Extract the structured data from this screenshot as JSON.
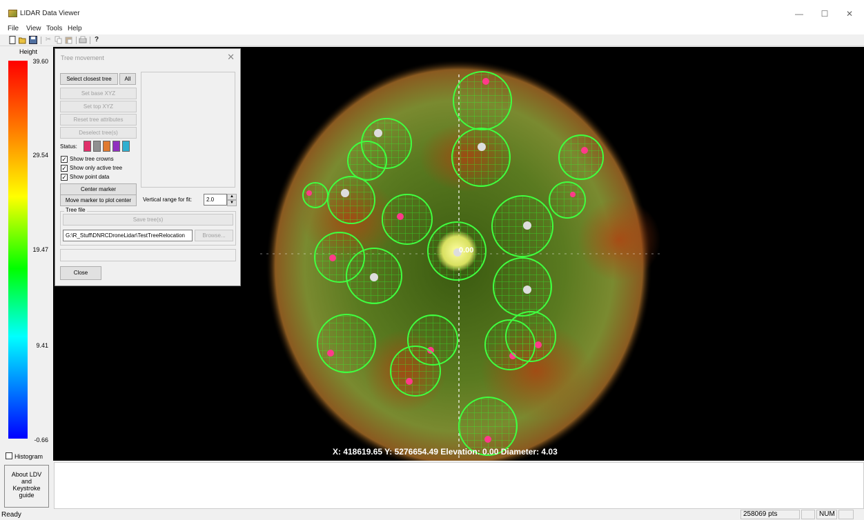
{
  "window": {
    "title": "LIDAR Data Viewer",
    "minimize": "—",
    "maximize": "☐",
    "close": "✕"
  },
  "menu": [
    "File",
    "View",
    "Tools",
    "Help"
  ],
  "toolbar": {
    "icons": [
      "new-icon",
      "open-icon",
      "save-icon",
      "cut-icon",
      "copy-icon",
      "paste-icon",
      "print-icon",
      "help-icon"
    ]
  },
  "legend": {
    "title": "Height",
    "ticks": [
      "39.60",
      "29.54",
      "19.47",
      "9.41",
      "-0.66"
    ],
    "histogram_label": "Histogram"
  },
  "viewer": {
    "center_label": "0.00",
    "readout": "X: 418619.65   Y: 5276654.49   Elevation: 0.00   Diameter: 4.03"
  },
  "dialog": {
    "title": "Tree movement",
    "close": "✕",
    "select_closest": "Select closest tree",
    "all": "All",
    "set_base": "Set base XYZ",
    "set_top": "Set top XYZ",
    "reset_attrs": "Reset tree attributes",
    "deselect": "Deselect tree(s)",
    "status_label": "Status:",
    "status_colors": [
      "#e0306a",
      "#909090",
      "#e07a30",
      "#9030c0",
      "#30b0d0"
    ],
    "show_crowns": "Show tree crowns",
    "show_active": "Show only active tree",
    "show_points": "Show point data",
    "center_marker": "Center marker",
    "move_marker": "Move marker to plot center",
    "vertical_range_label": "Vertical range for fit:",
    "vertical_range_value": "2.0",
    "tree_file_label": "Tree file",
    "save_trees": "Save tree(s)",
    "path": "G:\\R_Stuff\\DNRCDroneLidar\\TestTreeRelocation",
    "browse": "Browse...",
    "close_button": "Close"
  },
  "about": {
    "line1": "About LDV",
    "line2": "and",
    "line3": "Keystroke",
    "line4": "guide"
  },
  "status": {
    "ready": "Ready",
    "points": "258069 pts",
    "num": "NUM"
  }
}
